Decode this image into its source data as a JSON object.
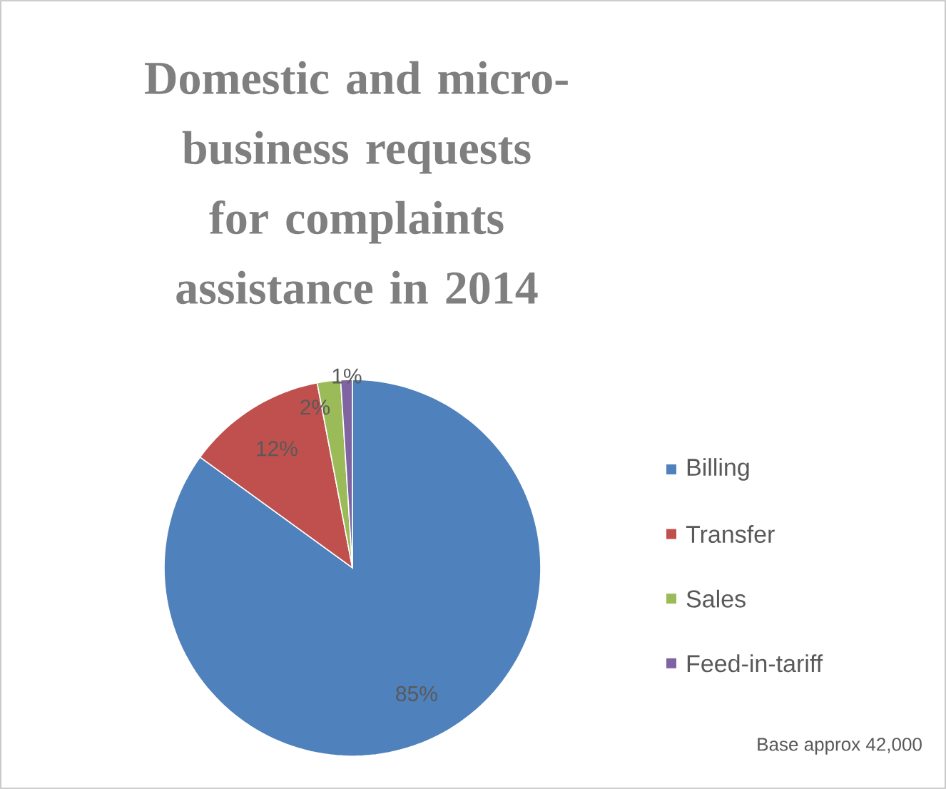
{
  "chart_data": {
    "type": "pie",
    "title": "Domestic and micro-business requests for complaints assistance in 2014",
    "categories": [
      "Billing",
      "Transfer",
      "Sales",
      "Feed-in-tariff"
    ],
    "values": [
      85,
      12,
      2,
      1
    ],
    "colors": [
      "#4f81bd",
      "#c0504d",
      "#9bbb59",
      "#8064a2"
    ],
    "value_labels": [
      "85%",
      "12%",
      "2%",
      "1%"
    ],
    "legend": "right",
    "annotations": [
      "Base approx 42,000"
    ]
  }
}
